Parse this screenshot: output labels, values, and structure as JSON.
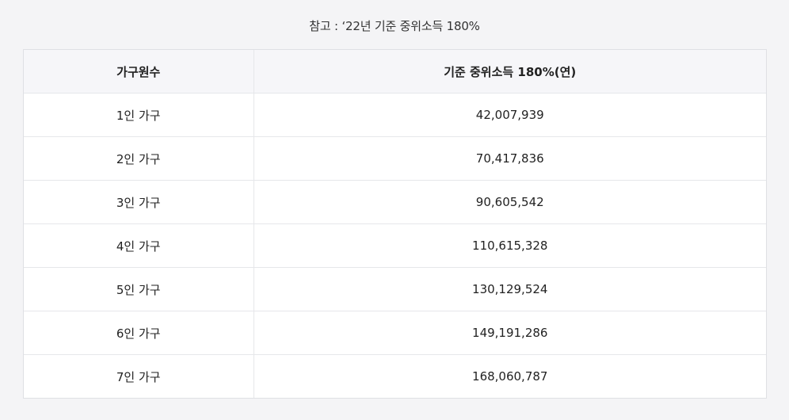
{
  "caption": "참고 : ‘22년 기준 중위소득 180%",
  "table": {
    "headers": [
      "가구원수",
      "기준 중위소득 180%(연)"
    ],
    "rows": [
      {
        "household": "1인 가구",
        "income": "42,007,939"
      },
      {
        "household": "2인 가구",
        "income": "70,417,836"
      },
      {
        "household": "3인 가구",
        "income": "90,605,542"
      },
      {
        "household": "4인 가구",
        "income": "110,615,328"
      },
      {
        "household": "5인 가구",
        "income": "130,129,524"
      },
      {
        "household": "6인 가구",
        "income": "149,191,286"
      },
      {
        "household": "7인 가구",
        "income": "168,060,787"
      }
    ]
  }
}
